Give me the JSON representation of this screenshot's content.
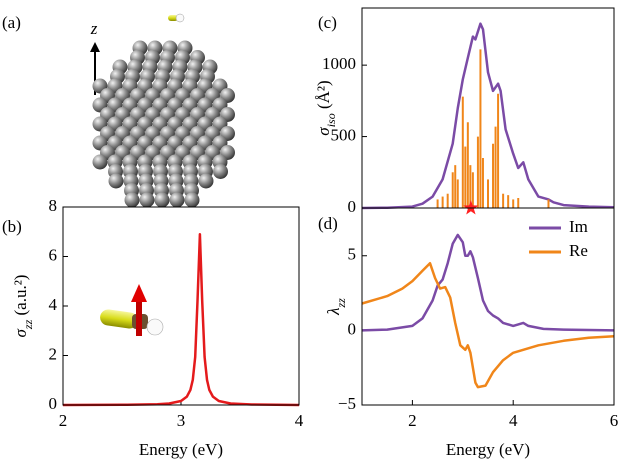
{
  "panel_a": {
    "label": "(a)",
    "axis_label": "z"
  },
  "chart_data": [
    {
      "type": "line",
      "label": "(b)",
      "x_label": "Energy (eV)",
      "y_label": {
        "main": "σ",
        "sub": "zz",
        "rest": " (a.u.²)"
      },
      "xlim": [
        2,
        4
      ],
      "xticks": [
        2,
        3,
        4
      ],
      "ylim": [
        0,
        8
      ],
      "yticks": [
        0,
        2,
        4,
        6,
        8
      ],
      "series": [
        {
          "color": "#e41a1c",
          "x": [
            2.0,
            2.5,
            2.8,
            2.9,
            3.0,
            3.05,
            3.08,
            3.1,
            3.12,
            3.14,
            3.16,
            3.18,
            3.2,
            3.22,
            3.24,
            3.27,
            3.32,
            3.42,
            3.6,
            4.0
          ],
          "values": [
            0.0,
            0.01,
            0.03,
            0.06,
            0.16,
            0.34,
            0.61,
            1.02,
            1.94,
            4.2,
            6.9,
            4.2,
            1.94,
            1.02,
            0.61,
            0.34,
            0.16,
            0.06,
            0.02,
            0.0
          ]
        }
      ]
    },
    {
      "type": "line",
      "label": "(c)",
      "y_label": {
        "main": "σ",
        "sub": "iso",
        "rest": " (Å²)"
      },
      "xlim": [
        1,
        6
      ],
      "ylim": [
        0,
        1400
      ],
      "yticks": [
        0,
        500,
        1000
      ],
      "marker": {
        "x": 3.16,
        "y": 0,
        "color": "#ff2020"
      },
      "series": [
        {
          "color": "#7b4ba6",
          "x": [
            1.0,
            1.5,
            2.0,
            2.2,
            2.4,
            2.6,
            2.8,
            2.9,
            3.0,
            3.1,
            3.2,
            3.25,
            3.35,
            3.4,
            3.5,
            3.6,
            3.7,
            3.75,
            3.85,
            4.0,
            4.1,
            4.2,
            4.3,
            4.5,
            4.7,
            4.8,
            5.0,
            5.5,
            6.0
          ],
          "values": [
            0,
            2,
            10,
            30,
            80,
            200,
            450,
            700,
            900,
            1050,
            1200,
            1180,
            1290,
            1250,
            950,
            820,
            870,
            820,
            550,
            380,
            280,
            320,
            200,
            80,
            60,
            40,
            20,
            10,
            5
          ]
        },
        {
          "color": "#f0861a",
          "style": "stem",
          "x": [
            2.5,
            2.6,
            2.7,
            2.8,
            2.85,
            2.9,
            3.0,
            3.05,
            3.1,
            3.15,
            3.2,
            3.3,
            3.35,
            3.4,
            3.5,
            3.6,
            3.65,
            3.7,
            3.8,
            3.9,
            4.0,
            4.1,
            4.7
          ],
          "values": [
            60,
            80,
            100,
            250,
            300,
            200,
            780,
            430,
            600,
            300,
            250,
            500,
            1110,
            350,
            200,
            450,
            570,
            800,
            100,
            90,
            60,
            70,
            60
          ]
        }
      ]
    },
    {
      "type": "line",
      "label": "(d)",
      "x_label": "Energy (eV)",
      "y_label": {
        "main": "λ",
        "sub": "zz",
        "rest": ""
      },
      "xlim": [
        1,
        6
      ],
      "xticks": [
        2,
        4,
        6
      ],
      "ylim": [
        -5,
        8.2
      ],
      "yticks": [
        {
          "value": -5,
          "label": "−5"
        },
        0,
        5
      ],
      "legend": "upper right",
      "series": [
        {
          "name": "Im",
          "color": "#7b4ba6",
          "x": [
            1.0,
            1.5,
            2.0,
            2.2,
            2.4,
            2.5,
            2.6,
            2.7,
            2.8,
            2.9,
            3.0,
            3.05,
            3.1,
            3.15,
            3.2,
            3.3,
            3.4,
            3.5,
            3.6,
            3.7,
            3.8,
            4.0,
            4.2,
            4.3,
            4.6,
            5.0,
            6.0
          ],
          "values": [
            0,
            0.05,
            0.3,
            0.8,
            2,
            3,
            3.4,
            4.5,
            5.8,
            6.4,
            5.9,
            5.0,
            5.0,
            5.3,
            4.9,
            3.5,
            2.0,
            1.3,
            1.0,
            0.8,
            0.5,
            0.3,
            0.5,
            0.3,
            0.1,
            0.05,
            0
          ]
        },
        {
          "name": "Re",
          "color": "#f0861a",
          "x": [
            1.0,
            1.5,
            1.8,
            2.0,
            2.2,
            2.35,
            2.45,
            2.55,
            2.65,
            2.75,
            2.85,
            2.95,
            3.05,
            3.1,
            3.15,
            3.25,
            3.3,
            3.45,
            3.6,
            3.8,
            4.0,
            4.5,
            5.0,
            5.5,
            6.0
          ],
          "values": [
            1.8,
            2.3,
            2.8,
            3.3,
            4.0,
            4.5,
            3.5,
            2.8,
            2.9,
            2.2,
            0.5,
            -1.0,
            -1.3,
            -1.0,
            -1.5,
            -3.5,
            -3.8,
            -3.7,
            -2.8,
            -2.0,
            -1.5,
            -1.0,
            -0.7,
            -0.5,
            -0.4
          ]
        }
      ]
    }
  ]
}
